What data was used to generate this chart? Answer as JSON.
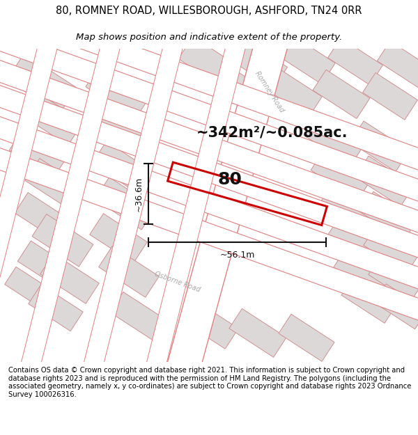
{
  "title_line1": "80, ROMNEY ROAD, WILLESBOROUGH, ASHFORD, TN24 0RR",
  "title_line2": "Map shows position and indicative extent of the property.",
  "footer_text": "Contains OS data © Crown copyright and database right 2021. This information is subject to Crown copyright and database rights 2023 and is reproduced with the permission of HM Land Registry. The polygons (including the associated geometry, namely x, y co-ordinates) are subject to Crown copyright and database rights 2023 Ordnance Survey 100026316.",
  "area_label": "~342m²/~0.085ac.",
  "property_number": "80",
  "width_label": "~56.1m",
  "height_label": "~36.6m",
  "map_bg": "#f2eeee",
  "road_fill": "#ffffff",
  "road_edge": "#e08080",
  "block_fill": "#ddd8d8",
  "block_edge": "#d09090",
  "property_color": "#cc0000",
  "dim_color": "#111111",
  "road_label_color": "#aaaaaa",
  "title_fontsize": 10.5,
  "subtitle_fontsize": 9.5,
  "footer_fontsize": 7.2,
  "area_fontsize": 15,
  "number_fontsize": 18,
  "dim_fontsize": 9,
  "road_label_fontsize": 7
}
